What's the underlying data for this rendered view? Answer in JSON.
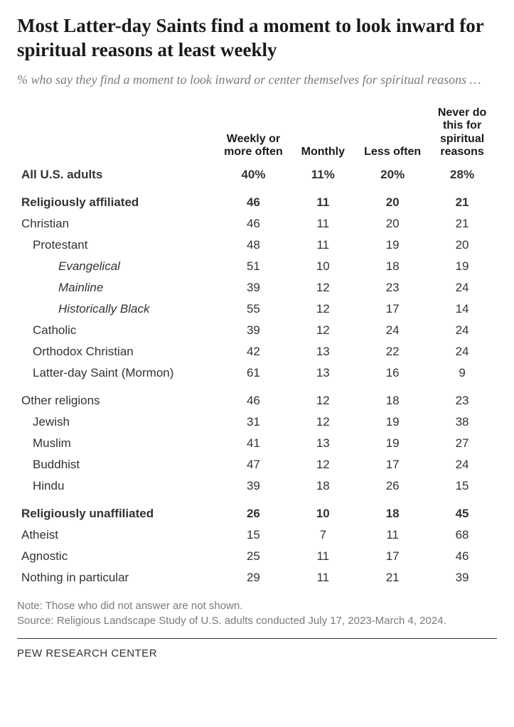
{
  "title": "Most Latter-day Saints find a moment to look inward for spiritual reasons at least weekly",
  "subtitle": "% who say they find a moment to look inward or center themselves for spiritual reasons …",
  "columns": [
    "Weekly or more often",
    "Monthly",
    "Less often",
    "Never do this for spiritual reasons"
  ],
  "rows": [
    {
      "label": "All U.S. adults",
      "vals": [
        "40%",
        "11%",
        "20%",
        "28%"
      ],
      "bold": true,
      "indent": 0,
      "gap": false
    },
    {
      "label": "Religiously affiliated",
      "vals": [
        "46",
        "11",
        "20",
        "21"
      ],
      "bold": true,
      "indent": 0,
      "gap": true
    },
    {
      "label": "Christian",
      "vals": [
        "46",
        "11",
        "20",
        "21"
      ],
      "bold": false,
      "indent": 0,
      "gap": false
    },
    {
      "label": "Protestant",
      "vals": [
        "48",
        "11",
        "19",
        "20"
      ],
      "bold": false,
      "indent": 1,
      "gap": false
    },
    {
      "label": "Evangelical",
      "vals": [
        "51",
        "10",
        "18",
        "19"
      ],
      "bold": false,
      "indent": 3,
      "gap": false
    },
    {
      "label": "Mainline",
      "vals": [
        "39",
        "12",
        "23",
        "24"
      ],
      "bold": false,
      "indent": 3,
      "gap": false
    },
    {
      "label": "Historically Black",
      "vals": [
        "55",
        "12",
        "17",
        "14"
      ],
      "bold": false,
      "indent": 3,
      "gap": false
    },
    {
      "label": "Catholic",
      "vals": [
        "39",
        "12",
        "24",
        "24"
      ],
      "bold": false,
      "indent": 1,
      "gap": false
    },
    {
      "label": "Orthodox Christian",
      "vals": [
        "42",
        "13",
        "22",
        "24"
      ],
      "bold": false,
      "indent": 1,
      "gap": false
    },
    {
      "label": "Latter-day Saint (Mormon)",
      "vals": [
        "61",
        "13",
        "16",
        "9"
      ],
      "bold": false,
      "indent": 1,
      "gap": false
    },
    {
      "label": "Other religions",
      "vals": [
        "46",
        "12",
        "18",
        "23"
      ],
      "bold": false,
      "indent": 0,
      "gap": true
    },
    {
      "label": "Jewish",
      "vals": [
        "31",
        "12",
        "19",
        "38"
      ],
      "bold": false,
      "indent": 1,
      "gap": false
    },
    {
      "label": "Muslim",
      "vals": [
        "41",
        "13",
        "19",
        "27"
      ],
      "bold": false,
      "indent": 1,
      "gap": false
    },
    {
      "label": "Buddhist",
      "vals": [
        "47",
        "12",
        "17",
        "24"
      ],
      "bold": false,
      "indent": 1,
      "gap": false
    },
    {
      "label": "Hindu",
      "vals": [
        "39",
        "18",
        "26",
        "15"
      ],
      "bold": false,
      "indent": 1,
      "gap": false
    },
    {
      "label": "Religiously unaffiliated",
      "vals": [
        "26",
        "10",
        "18",
        "45"
      ],
      "bold": true,
      "indent": 0,
      "gap": true
    },
    {
      "label": "Atheist",
      "vals": [
        "15",
        "7",
        "11",
        "68"
      ],
      "bold": false,
      "indent": 0,
      "gap": false
    },
    {
      "label": "Agnostic",
      "vals": [
        "25",
        "11",
        "17",
        "46"
      ],
      "bold": false,
      "indent": 0,
      "gap": false
    },
    {
      "label": "Nothing in particular",
      "vals": [
        "29",
        "11",
        "21",
        "39"
      ],
      "bold": false,
      "indent": 0,
      "gap": false
    }
  ],
  "note1": "Note: Those who did not answer are not shown.",
  "note2": "Source: Religious Landscape Study of U.S. adults conducted July 17, 2023-March 4, 2024.",
  "footer": "PEW RESEARCH CENTER"
}
